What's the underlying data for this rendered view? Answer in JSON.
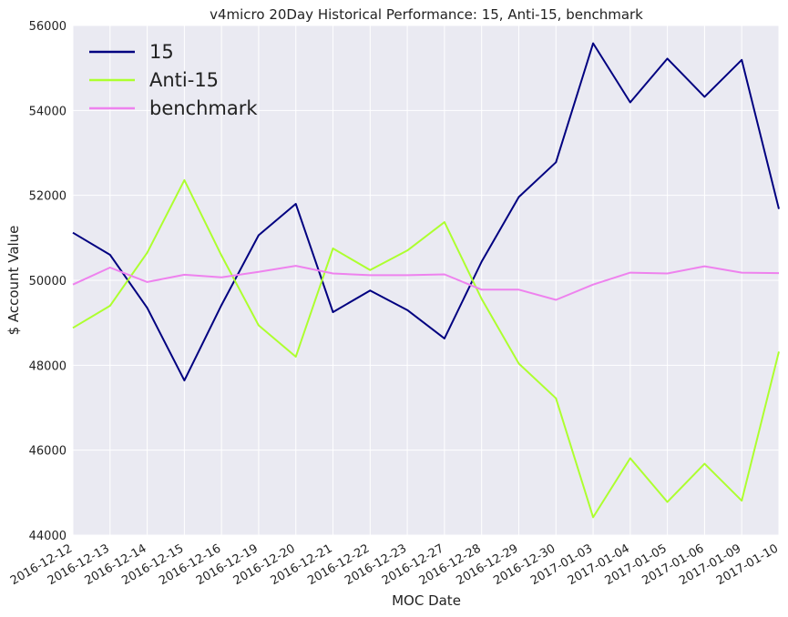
{
  "chart_data": {
    "type": "line",
    "title": "v4micro 20Day Historical Performance: 15, Anti-15, benchmark",
    "xlabel": "MOC Date",
    "ylabel": "$ Account Value",
    "ylim": [
      44000,
      56000
    ],
    "yticks": [
      44000,
      46000,
      48000,
      50000,
      52000,
      54000,
      56000
    ],
    "grid": true,
    "legend_position": "top-left",
    "background": "#eaeaf2",
    "categories": [
      "2016-12-12",
      "2016-12-13",
      "2016-12-14",
      "2016-12-15",
      "2016-12-16",
      "2016-12-19",
      "2016-12-20",
      "2016-12-21",
      "2016-12-22",
      "2016-12-23",
      "2016-12-27",
      "2016-12-28",
      "2016-12-29",
      "2016-12-30",
      "2017-01-03",
      "2017-01-04",
      "2017-01-05",
      "2017-01-06",
      "2017-01-09",
      "2017-01-10"
    ],
    "series": [
      {
        "name": "15",
        "color": "#000080",
        "values": [
          51120,
          50600,
          49350,
          47640,
          49420,
          51060,
          51800,
          49250,
          49760,
          49300,
          48630,
          50440,
          51960,
          52780,
          55580,
          54190,
          55220,
          54320,
          55190,
          51680
        ]
      },
      {
        "name": "Anti-15",
        "color": "#adff2f",
        "values": [
          48880,
          49400,
          50650,
          52360,
          50580,
          48940,
          48200,
          50750,
          50240,
          50700,
          51370,
          49560,
          48040,
          47220,
          44420,
          45810,
          44780,
          45680,
          44810,
          48320
        ]
      },
      {
        "name": "benchmark",
        "color": "#ee82ee",
        "values": [
          49900,
          50300,
          49960,
          50130,
          50070,
          50200,
          50340,
          50160,
          50120,
          50120,
          50140,
          49780,
          49780,
          49540,
          49900,
          50180,
          50160,
          50330,
          50180,
          50170
        ]
      }
    ]
  }
}
